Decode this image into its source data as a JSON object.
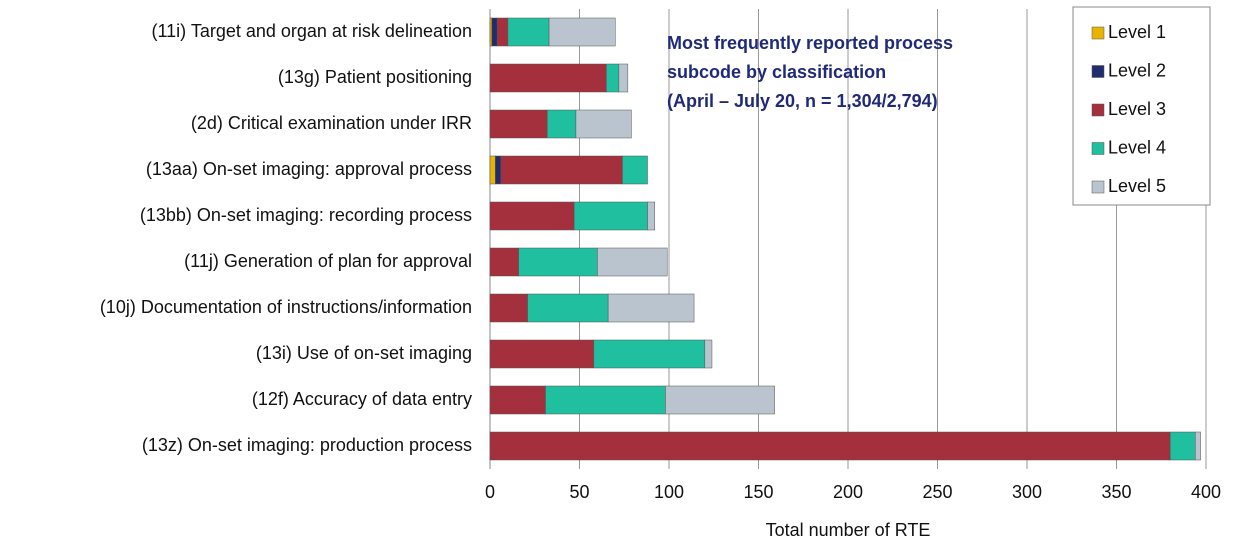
{
  "chart_data": {
    "type": "stacked_barh",
    "annotation": [
      "Most frequently reported process",
      "subcode by classification",
      "(April – July 20, n = 1,304/2,794)"
    ],
    "x_label": "Total number of RTE",
    "categories": [
      "(11i) Target and organ at risk delineation",
      "(13g) Patient positioning",
      "(2d) Critical examination under IRR",
      "(13aa) On-set imaging: approval process",
      "(13bb) On-set imaging: recording process",
      "(11j) Generation of plan for approval",
      "(10j) Documentation of instructions/information",
      "(13i) Use of on-set imaging",
      "(12f) Accuracy of data entry",
      "(13z) On-set imaging: production process"
    ],
    "series": [
      {
        "name": "Level 1",
        "color": "#e8b400",
        "values": [
          1,
          0,
          0,
          3,
          0,
          0,
          0,
          0,
          0,
          0
        ]
      },
      {
        "name": "Level 2",
        "color": "#1f2d6e",
        "values": [
          3,
          0,
          0,
          3,
          0,
          0,
          0,
          0,
          0,
          0
        ]
      },
      {
        "name": "Level 3",
        "color": "#a3303c",
        "values": [
          6,
          65,
          32,
          68,
          47,
          16,
          21,
          58,
          31,
          380
        ]
      },
      {
        "name": "Level 4",
        "color": "#1fbf9f",
        "values": [
          23,
          7,
          16,
          14,
          41,
          44,
          45,
          62,
          67,
          14
        ]
      },
      {
        "name": "Level 5",
        "color": "#b9c4cf",
        "values": [
          37,
          5,
          31,
          0,
          4,
          39,
          48,
          4,
          61,
          3
        ]
      }
    ],
    "xlim": [
      0,
      400
    ],
    "xticks": [
      0,
      50,
      100,
      150,
      200,
      250,
      300,
      350,
      400
    ],
    "grid": true,
    "legend": "top-right"
  }
}
